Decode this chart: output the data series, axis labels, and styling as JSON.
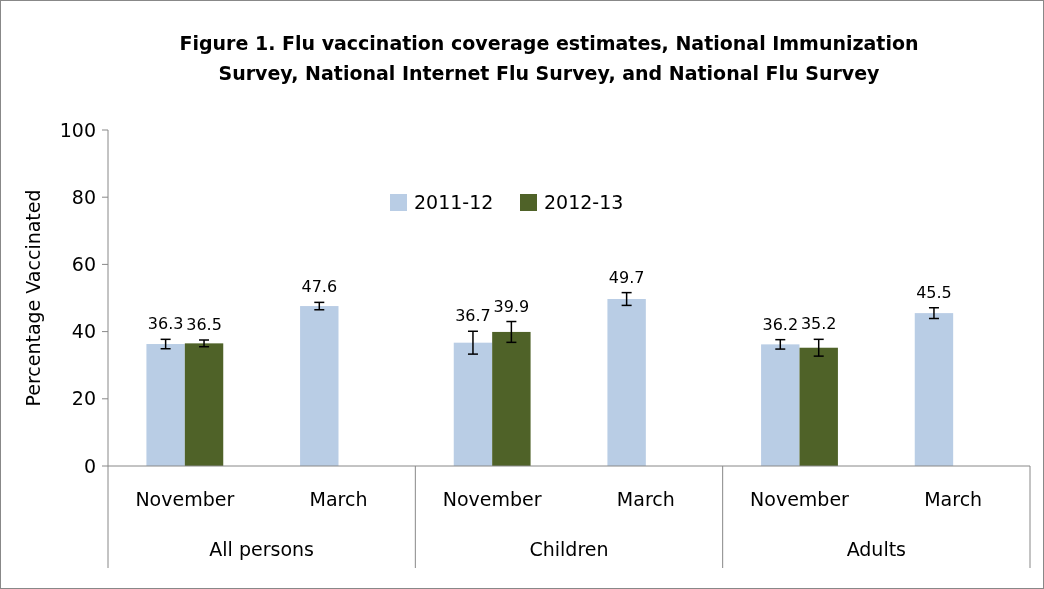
{
  "chart_data": {
    "type": "bar",
    "title": "Figure 1. Flu vaccination coverage estimates, National Immunization Survey, National Internet Flu Survey, and National Flu Survey",
    "ylabel": "Percentage Vaccinated",
    "categories": [
      "November",
      "March",
      "November",
      "March",
      "November",
      "March"
    ],
    "annotations": [
      "All persons",
      "Children",
      "Adults"
    ],
    "series": [
      {
        "name": "2011-12",
        "color": "#b9cde5",
        "values": [
          36.3,
          47.6,
          36.7,
          49.7,
          36.2,
          45.5
        ],
        "errors": [
          1.4,
          1.1,
          3.4,
          1.9,
          1.4,
          1.6
        ]
      },
      {
        "name": "2012-13",
        "color": "#4f6228",
        "values": [
          36.5,
          null,
          39.9,
          null,
          35.2,
          null
        ],
        "errors": [
          1.0,
          null,
          3.1,
          null,
          2.5,
          null
        ]
      }
    ],
    "ylim": [
      0,
      100
    ],
    "yticks": [
      0,
      20,
      40,
      60,
      80,
      100
    ],
    "data_labels": true,
    "legend": "top",
    "grid": false
  }
}
